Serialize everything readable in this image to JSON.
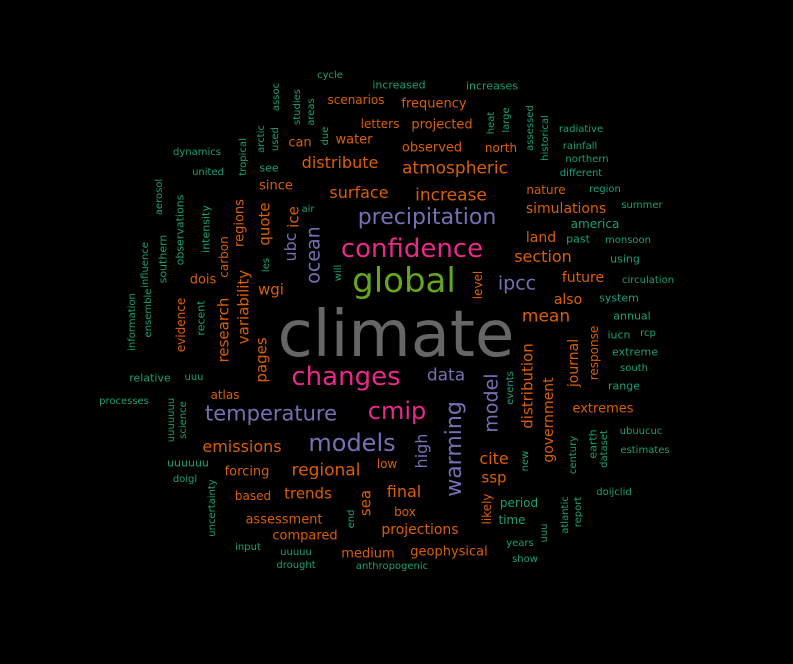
{
  "colors": {
    "background": "#000000",
    "dark_green": "#1b9e77",
    "orange": "#d95f02",
    "purple": "#7570b3",
    "magenta": "#e7298a",
    "lime": "#66a61e",
    "gray": "#666666"
  },
  "words": [
    {
      "text": "climate",
      "color": "gray"
    },
    {
      "text": "global",
      "color": "lime"
    },
    {
      "text": "changes",
      "color": "magenta"
    },
    {
      "text": "confidence",
      "color": "magenta"
    },
    {
      "text": "cmip",
      "color": "magenta"
    },
    {
      "text": "precipitation",
      "color": "purple"
    },
    {
      "text": "temperature",
      "color": "purple"
    },
    {
      "text": "models",
      "color": "purple"
    },
    {
      "text": "warming",
      "color": "purple"
    },
    {
      "text": "ocean",
      "color": "purple"
    },
    {
      "text": "ipcc",
      "color": "purple"
    },
    {
      "text": "model",
      "color": "purple"
    },
    {
      "text": "data",
      "color": "purple"
    },
    {
      "text": "ubc",
      "color": "purple"
    },
    {
      "text": "high",
      "color": "purple"
    },
    {
      "text": "atmospheric",
      "color": "orange"
    },
    {
      "text": "distribute",
      "color": "orange"
    },
    {
      "text": "surface",
      "color": "orange"
    },
    {
      "text": "increase",
      "color": "orange"
    },
    {
      "text": "section",
      "color": "orange"
    },
    {
      "text": "mean",
      "color": "orange"
    },
    {
      "text": "land",
      "color": "orange"
    },
    {
      "text": "regional",
      "color": "orange"
    },
    {
      "text": "emissions",
      "color": "orange"
    },
    {
      "text": "final",
      "color": "orange"
    },
    {
      "text": "trends",
      "color": "orange"
    },
    {
      "text": "cite",
      "color": "orange"
    },
    {
      "text": "ssp",
      "color": "orange"
    },
    {
      "text": "wgi",
      "color": "orange"
    },
    {
      "text": "quote",
      "color": "orange"
    },
    {
      "text": "ice",
      "color": "orange"
    },
    {
      "text": "variability",
      "color": "orange"
    },
    {
      "text": "research",
      "color": "orange"
    },
    {
      "text": "pages",
      "color": "orange"
    },
    {
      "text": "distribution",
      "color": "orange"
    },
    {
      "text": "government",
      "color": "orange"
    },
    {
      "text": "journal",
      "color": "orange"
    },
    {
      "text": "sea",
      "color": "orange"
    },
    {
      "text": "observed",
      "color": "orange"
    },
    {
      "text": "projected",
      "color": "orange"
    },
    {
      "text": "frequency",
      "color": "orange"
    },
    {
      "text": "simulations",
      "color": "orange"
    },
    {
      "text": "future",
      "color": "orange"
    },
    {
      "text": "also",
      "color": "orange"
    },
    {
      "text": "extremes",
      "color": "orange"
    },
    {
      "text": "assessment",
      "color": "orange"
    },
    {
      "text": "projections",
      "color": "orange"
    },
    {
      "text": "geophysical",
      "color": "orange"
    },
    {
      "text": "medium",
      "color": "orange"
    },
    {
      "text": "compared",
      "color": "orange"
    },
    {
      "text": "forcing",
      "color": "orange"
    },
    {
      "text": "based",
      "color": "orange"
    },
    {
      "text": "box",
      "color": "orange"
    },
    {
      "text": "low",
      "color": "orange"
    },
    {
      "text": "dois",
      "color": "orange"
    },
    {
      "text": "atlas",
      "color": "orange"
    },
    {
      "text": "since",
      "color": "orange"
    },
    {
      "text": "regions",
      "color": "orange"
    },
    {
      "text": "water",
      "color": "orange"
    },
    {
      "text": "can",
      "color": "orange"
    },
    {
      "text": "north",
      "color": "orange"
    },
    {
      "text": "nature",
      "color": "orange"
    },
    {
      "text": "letters",
      "color": "orange"
    },
    {
      "text": "scenarios",
      "color": "orange"
    },
    {
      "text": "evidence",
      "color": "orange"
    },
    {
      "text": "level",
      "color": "orange"
    },
    {
      "text": "response",
      "color": "orange"
    },
    {
      "text": "carbon",
      "color": "orange"
    },
    {
      "text": "likely",
      "color": "orange"
    },
    {
      "text": "increased",
      "color": "dark_green"
    },
    {
      "text": "increases",
      "color": "dark_green"
    },
    {
      "text": "radiative",
      "color": "dark_green"
    },
    {
      "text": "rainfall",
      "color": "dark_green"
    },
    {
      "text": "northern",
      "color": "dark_green"
    },
    {
      "text": "different",
      "color": "dark_green"
    },
    {
      "text": "region",
      "color": "dark_green"
    },
    {
      "text": "summer",
      "color": "dark_green"
    },
    {
      "text": "america",
      "color": "dark_green"
    },
    {
      "text": "past",
      "color": "dark_green"
    },
    {
      "text": "monsoon",
      "color": "dark_green"
    },
    {
      "text": "using",
      "color": "dark_green"
    },
    {
      "text": "circulation",
      "color": "dark_green"
    },
    {
      "text": "system",
      "color": "dark_green"
    },
    {
      "text": "annual",
      "color": "dark_green"
    },
    {
      "text": "iucn",
      "color": "dark_green"
    },
    {
      "text": "rcp",
      "color": "dark_green"
    },
    {
      "text": "extreme",
      "color": "dark_green"
    },
    {
      "text": "south",
      "color": "dark_green"
    },
    {
      "text": "range",
      "color": "dark_green"
    },
    {
      "text": "ubuucuc",
      "color": "dark_green"
    },
    {
      "text": "estimates",
      "color": "dark_green"
    },
    {
      "text": "doijclid",
      "color": "dark_green"
    },
    {
      "text": "dynamics",
      "color": "dark_green"
    },
    {
      "text": "united",
      "color": "dark_green"
    },
    {
      "text": "processes",
      "color": "dark_green"
    },
    {
      "text": "relative",
      "color": "dark_green"
    },
    {
      "text": "uuu",
      "color": "dark_green"
    },
    {
      "text": "uuuuuu",
      "color": "dark_green"
    },
    {
      "text": "doigl",
      "color": "dark_green"
    },
    {
      "text": "input",
      "color": "dark_green"
    },
    {
      "text": "uuuuu",
      "color": "dark_green"
    },
    {
      "text": "years",
      "color": "dark_green"
    },
    {
      "text": "show",
      "color": "dark_green"
    },
    {
      "text": "time",
      "color": "dark_green"
    },
    {
      "text": "period",
      "color": "dark_green"
    },
    {
      "text": "air",
      "color": "dark_green"
    },
    {
      "text": "see",
      "color": "dark_green"
    },
    {
      "text": "tropical",
      "color": "dark_green"
    },
    {
      "text": "arctic",
      "color": "dark_green"
    },
    {
      "text": "used",
      "color": "dark_green"
    },
    {
      "text": "assoc",
      "color": "dark_green"
    },
    {
      "text": "studies",
      "color": "dark_green"
    },
    {
      "text": "areas",
      "color": "dark_green"
    },
    {
      "text": "due",
      "color": "dark_green"
    },
    {
      "text": "heat",
      "color": "dark_green"
    },
    {
      "text": "large",
      "color": "dark_green"
    },
    {
      "text": "assessed",
      "color": "dark_green"
    },
    {
      "text": "historical",
      "color": "dark_green"
    },
    {
      "text": "aerosol",
      "color": "dark_green"
    },
    {
      "text": "observations",
      "color": "dark_green"
    },
    {
      "text": "intensity",
      "color": "dark_green"
    },
    {
      "text": "southern",
      "color": "dark_green"
    },
    {
      "text": "influence",
      "color": "dark_green"
    },
    {
      "text": "ensemble",
      "color": "dark_green"
    },
    {
      "text": "information",
      "color": "dark_green"
    },
    {
      "text": "recent",
      "color": "dark_green"
    },
    {
      "text": "uuuuuuu",
      "color": "dark_green"
    },
    {
      "text": "science",
      "color": "dark_green"
    },
    {
      "text": "uncertainty",
      "color": "dark_green"
    },
    {
      "text": "les",
      "color": "dark_green"
    },
    {
      "text": "will",
      "color": "dark_green"
    },
    {
      "text": "events",
      "color": "dark_green"
    },
    {
      "text": "new",
      "color": "dark_green"
    },
    {
      "text": "century",
      "color": "dark_green"
    },
    {
      "text": "earth",
      "color": "dark_green"
    },
    {
      "text": "dataset",
      "color": "dark_green"
    },
    {
      "text": "atlantic",
      "color": "dark_green"
    },
    {
      "text": "report",
      "color": "dark_green"
    },
    {
      "text": "end",
      "color": "dark_green"
    },
    {
      "text": "uuu",
      "color": "dark_green"
    },
    {
      "text": "cycle",
      "color": "dark_green"
    },
    {
      "text": "drought",
      "color": "dark_green"
    },
    {
      "text": "anthropogenic",
      "color": "dark_green"
    }
  ]
}
